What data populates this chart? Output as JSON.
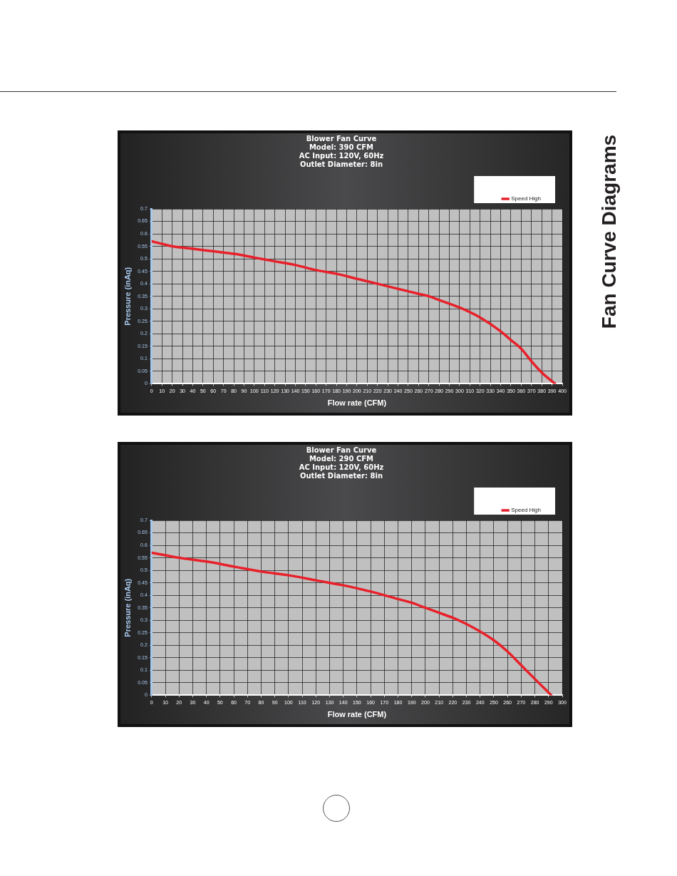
{
  "chart_data": [
    {
      "type": "line",
      "title": "Blower Fan Curve",
      "subtitle": "Model: 390 CFM\nAC Input: 120V, 60Hz\nOutlet Diameter: 8in",
      "xlabel": "Flow rate (CFM)",
      "ylabel": "Pressure (inAq)",
      "annotations": [
        "Fan Curve Diagrams"
      ],
      "x": [
        0,
        10,
        20,
        40,
        60,
        80,
        100,
        120,
        140,
        160,
        180,
        200,
        220,
        240,
        260,
        270,
        280,
        300,
        320,
        340,
        350,
        360,
        370,
        380,
        393
      ],
      "series": [
        {
          "name": "Speed High",
          "color": "#e8202a",
          "values": [
            0.57,
            0.56,
            0.55,
            0.54,
            0.53,
            0.52,
            0.505,
            0.49,
            0.475,
            0.455,
            0.44,
            0.42,
            0.4,
            0.38,
            0.36,
            0.35,
            0.335,
            0.305,
            0.265,
            0.21,
            0.175,
            0.14,
            0.09,
            0.045,
            0
          ]
        }
      ],
      "xlim": [
        0,
        400
      ],
      "xticks": [
        0,
        10,
        20,
        30,
        40,
        50,
        60,
        70,
        80,
        90,
        100,
        110,
        120,
        130,
        140,
        150,
        160,
        170,
        180,
        190,
        200,
        210,
        220,
        230,
        240,
        250,
        260,
        270,
        280,
        290,
        300,
        310,
        320,
        330,
        340,
        350,
        360,
        370,
        380,
        390,
        400
      ],
      "ylim": [
        0,
        0.7
      ],
      "yticks": [
        0,
        0.05,
        0.1,
        0.15,
        0.2,
        0.25,
        0.3,
        0.35,
        0.4,
        0.45,
        0.5,
        0.55,
        0.6,
        0.65,
        0.7
      ],
      "grid": true,
      "legend": "top right",
      "marker": "none",
      "line_style": "solid"
    },
    {
      "type": "line",
      "title": "Blower Fan Curve",
      "subtitle": "Model: 290 CFM\nAC Input: 120V, 60Hz\nOutlet Diameter: 8in",
      "xlabel": "Flow rate (CFM)",
      "ylabel": "Pressure (inAq)",
      "x": [
        0,
        10,
        20,
        40,
        60,
        80,
        100,
        120,
        140,
        160,
        180,
        190,
        200,
        210,
        220,
        230,
        240,
        250,
        260,
        270,
        280,
        292
      ],
      "series": [
        {
          "name": "Speed High",
          "color": "#e8202a",
          "values": [
            0.57,
            0.56,
            0.55,
            0.535,
            0.515,
            0.495,
            0.48,
            0.46,
            0.44,
            0.415,
            0.385,
            0.37,
            0.35,
            0.33,
            0.31,
            0.285,
            0.255,
            0.22,
            0.175,
            0.12,
            0.065,
            0
          ]
        }
      ],
      "xlim": [
        0,
        300
      ],
      "xticks": [
        0,
        10,
        20,
        30,
        40,
        50,
        60,
        70,
        80,
        90,
        100,
        110,
        120,
        130,
        140,
        150,
        160,
        170,
        180,
        190,
        200,
        210,
        220,
        230,
        240,
        250,
        260,
        270,
        280,
        290,
        300
      ],
      "ylim": [
        0,
        0.7
      ],
      "yticks": [
        0,
        0.05,
        0.1,
        0.15,
        0.2,
        0.25,
        0.3,
        0.35,
        0.4,
        0.45,
        0.5,
        0.55,
        0.6,
        0.65,
        0.7
      ],
      "grid": true,
      "legend": "top right",
      "marker": "none",
      "line_style": "solid"
    }
  ]
}
